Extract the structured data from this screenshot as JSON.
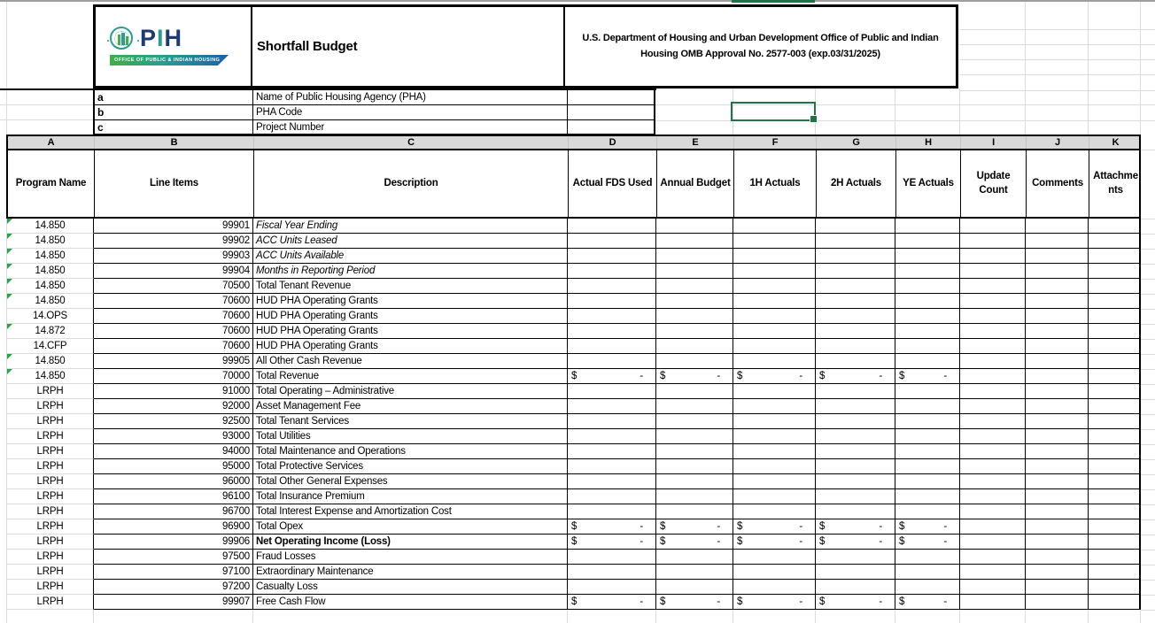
{
  "excel_chrome": {
    "selected_column": "F",
    "selection_color": "#217346"
  },
  "header": {
    "logo": {
      "acronym_p": "P",
      "acronym_i": "I",
      "acronym_h": "H",
      "banner": "OFFICE OF PUBLIC & INDIAN HOUSING"
    },
    "form_title": "Shortfall Budget",
    "agency_text": "U.S. Department of Housing and Urban Development Office of Public and Indian Housing OMB Approval No. 2577-003 (exp.03/31/2025)"
  },
  "info_rows": [
    {
      "key": "a",
      "label": "Name of Public Housing Agency (PHA)",
      "value": ""
    },
    {
      "key": "b",
      "label": "PHA Code",
      "value": ""
    },
    {
      "key": "c",
      "label": "Project Number",
      "value": ""
    }
  ],
  "sheet": {
    "column_letters": [
      "A",
      "B",
      "C",
      "D",
      "E",
      "F",
      "G",
      "H",
      "I",
      "J",
      "K"
    ],
    "headers": [
      "Program Name",
      "Line Items",
      "Description",
      "Actual FDS Used",
      "Annual Budget",
      "1H Actuals",
      "2H Actuals",
      "YE Actuals",
      "Update Count",
      "Comments",
      "Attachments"
    ],
    "money_placeholder": {
      "currency": "$",
      "amount": "-"
    },
    "money_column_letters": [
      "D",
      "E",
      "F",
      "G",
      "H"
    ],
    "rows": [
      {
        "program": "14.850",
        "line_item": "99901",
        "description": "Fiscal Year Ending",
        "italic": true,
        "flag": true
      },
      {
        "program": "14.850",
        "line_item": "99902",
        "description": "ACC Units Leased",
        "italic": true,
        "flag": true
      },
      {
        "program": "14.850",
        "line_item": "99903",
        "description": "ACC Units Available",
        "italic": true,
        "flag": true
      },
      {
        "program": "14.850",
        "line_item": "99904",
        "description": "Months in Reporting Period",
        "italic": true,
        "flag": true
      },
      {
        "program": "14.850",
        "line_item": "70500",
        "description": "Total Tenant Revenue",
        "flag": true
      },
      {
        "program": "14.850",
        "line_item": "70600",
        "description": "HUD PHA Operating Grants",
        "flag": true
      },
      {
        "program": "14.OPS",
        "line_item": "70600",
        "description": "HUD PHA Operating Grants"
      },
      {
        "program": "14.872",
        "line_item": "70600",
        "description": "HUD PHA Operating Grants",
        "flag": true
      },
      {
        "program": "14.CFP",
        "line_item": "70600",
        "description": "HUD PHA Operating Grants"
      },
      {
        "program": "14.850",
        "line_item": "99905",
        "description": "All Other Cash Revenue",
        "flag": true
      },
      {
        "program": "14.850",
        "line_item": "70000",
        "description": "Total Revenue",
        "flag": true,
        "money": true
      },
      {
        "program": "LRPH",
        "line_item": "91000",
        "description": "Total Operating – Administrative"
      },
      {
        "program": "LRPH",
        "line_item": "92000",
        "description": "Asset Management Fee"
      },
      {
        "program": "LRPH",
        "line_item": "92500",
        "description": "Total Tenant Services"
      },
      {
        "program": "LRPH",
        "line_item": "93000",
        "description": "Total Utilities"
      },
      {
        "program": "LRPH",
        "line_item": "94000",
        "description": "Total Maintenance and Operations"
      },
      {
        "program": "LRPH",
        "line_item": "95000",
        "description": "Total Protective Services"
      },
      {
        "program": "LRPH",
        "line_item": "96000",
        "description": "Total Other General Expenses"
      },
      {
        "program": "LRPH",
        "line_item": "96100",
        "description": "Total Insurance Premium"
      },
      {
        "program": "LRPH",
        "line_item": "96700",
        "description": "Total Interest Expense and Amortization Cost"
      },
      {
        "program": "LRPH",
        "line_item": "96900",
        "description": "Total Opex",
        "money": true
      },
      {
        "program": "LRPH",
        "line_item": "99906",
        "description": "Net Operating Income (Loss)",
        "bold": true,
        "money": true
      },
      {
        "program": "LRPH",
        "line_item": "97500",
        "description": "Fraud Losses"
      },
      {
        "program": "LRPH",
        "line_item": "97100",
        "description": "Extraordinary Maintenance"
      },
      {
        "program": "LRPH",
        "line_item": "97200",
        "description": "Casualty Loss"
      },
      {
        "program": "LRPH",
        "line_item": "99907",
        "description": "Free Cash Flow",
        "money": true
      }
    ]
  },
  "colors": {
    "accent_green": "#217346",
    "flag_green": "#2f9e4f",
    "gridline": "#dcdcdc",
    "letters_fill": "#d9d9d9",
    "logo_navy": "#1e3a6e",
    "logo_teal": "#2a9d8f",
    "banner_green": "#3fae49",
    "banner_blue": "#1e5fa8"
  }
}
